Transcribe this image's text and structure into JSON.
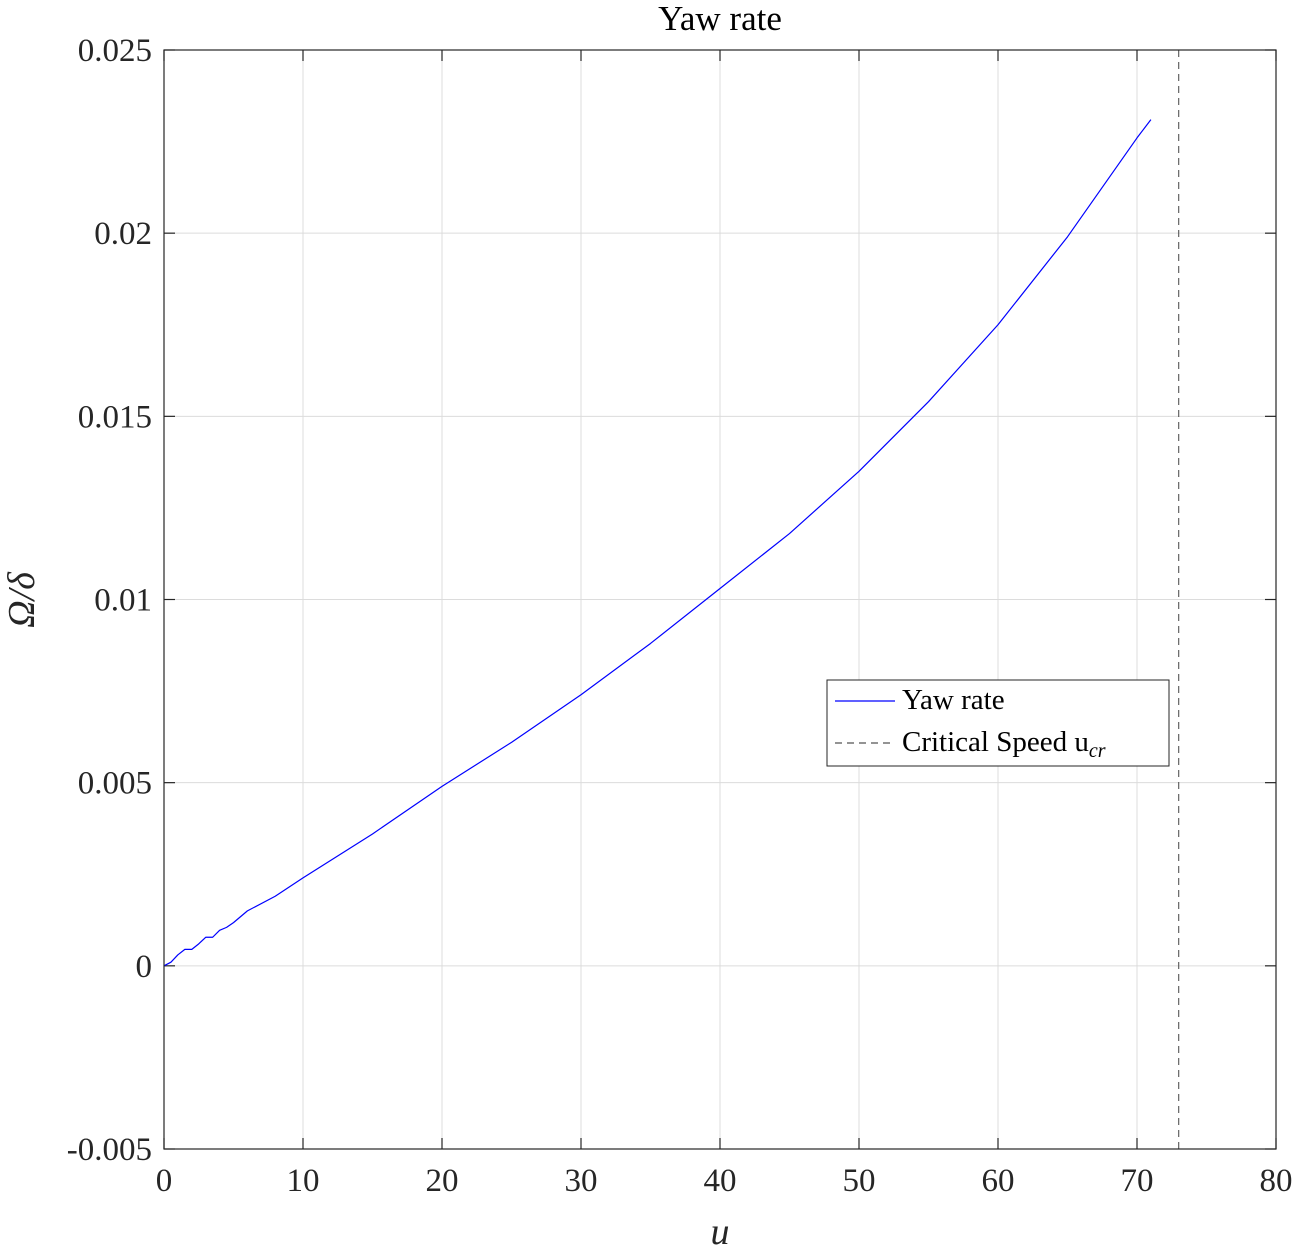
{
  "chart_data": {
    "type": "line",
    "title": "Yaw rate",
    "xlabel": "u",
    "ylabel": "Ω/δ",
    "xlim": [
      0,
      80
    ],
    "ylim": [
      -0.005,
      0.025
    ],
    "xticks": [
      "0",
      "10",
      "20",
      "30",
      "40",
      "50",
      "60",
      "70",
      "80"
    ],
    "yticks": [
      "-0.005",
      "0",
      "0.005",
      "0.01",
      "0.015",
      "0.02",
      "0.025"
    ],
    "grid": true,
    "legend_position": "center-right",
    "series": [
      {
        "name": "Yaw rate",
        "color": "#0000ff",
        "style": "solid",
        "x": [
          0,
          0.5,
          1,
          1.5,
          2,
          2.5,
          3,
          3.5,
          4,
          4.5,
          5,
          6,
          8,
          10,
          15,
          20,
          25,
          30,
          35,
          40,
          45,
          50,
          55,
          60,
          65,
          70,
          71
        ],
        "y": [
          0,
          0.0001,
          0.0003,
          0.00045,
          0.00045,
          0.0006,
          0.00078,
          0.00078,
          0.00097,
          0.00105,
          0.00118,
          0.0015,
          0.0019,
          0.0024,
          0.0036,
          0.0049,
          0.0061,
          0.0074,
          0.0088,
          0.0103,
          0.0118,
          0.0135,
          0.0154,
          0.0175,
          0.0199,
          0.0226,
          0.0231
        ]
      },
      {
        "name": "Critical Speed u",
        "name_subscript": "cr",
        "color": "#555555",
        "style": "dashed",
        "x": [
          73,
          73
        ],
        "y": [
          -0.005,
          0.025
        ]
      }
    ]
  }
}
